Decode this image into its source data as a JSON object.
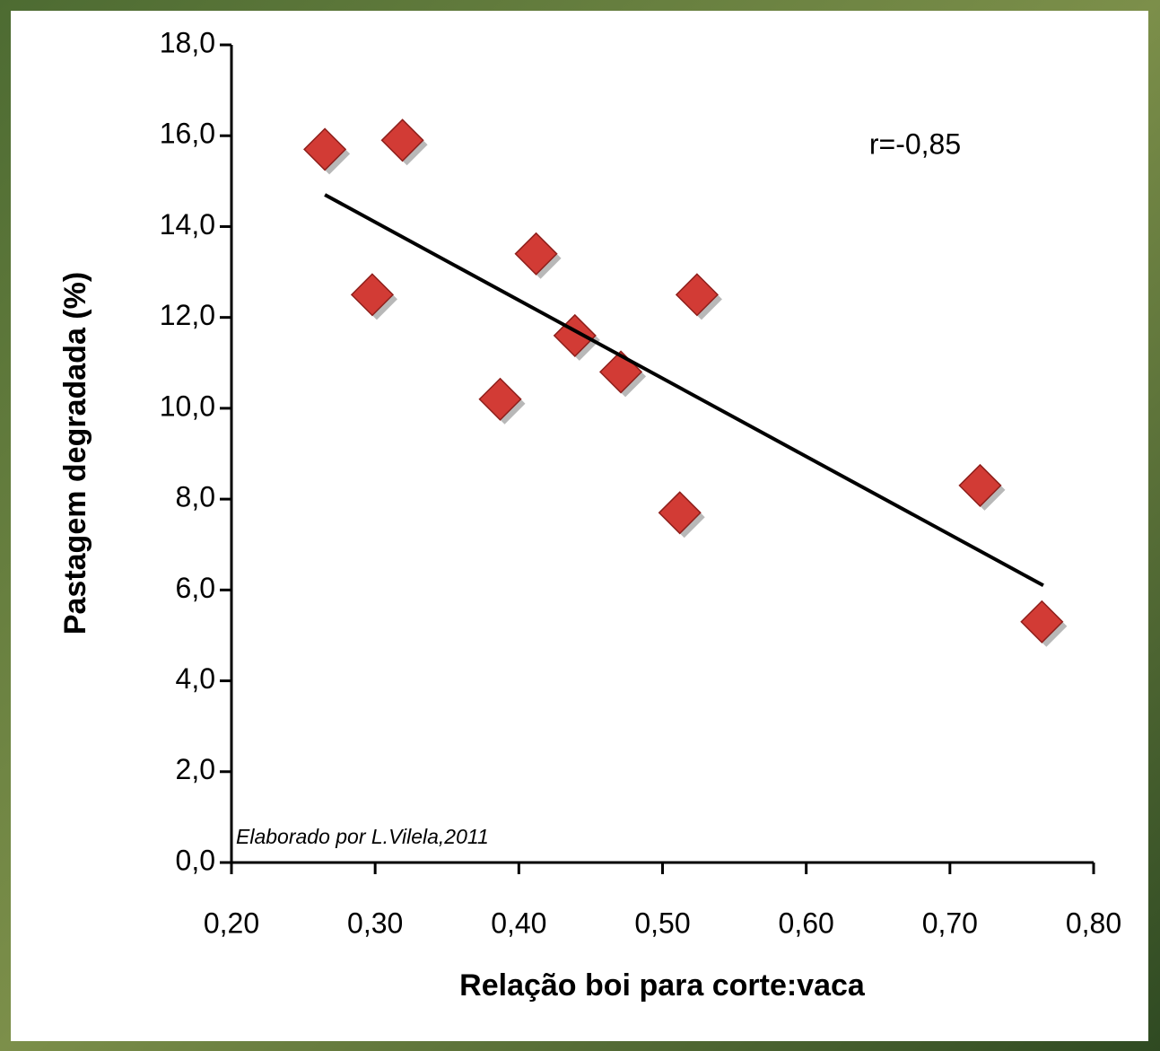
{
  "chart_data": {
    "type": "scatter",
    "x_label": "Relação boi para corte:vaca",
    "y_label": "Pastagem degradada (%)",
    "annotation": "r=-0,85",
    "source": "Elaborado por L.Vilela,2011",
    "xlim": [
      0.2,
      0.8
    ],
    "ylim": [
      0,
      18
    ],
    "xticks": [
      {
        "value": 0.2,
        "label": "0,20"
      },
      {
        "value": 0.3,
        "label": "0,30"
      },
      {
        "value": 0.4,
        "label": "0,40"
      },
      {
        "value": 0.5,
        "label": "0,50"
      },
      {
        "value": 0.6,
        "label": "0,60"
      },
      {
        "value": 0.7,
        "label": "0,70"
      },
      {
        "value": 0.8,
        "label": "0,80"
      }
    ],
    "yticks": [
      {
        "value": 0,
        "label": "0,0"
      },
      {
        "value": 2,
        "label": "2,0"
      },
      {
        "value": 4,
        "label": "4,0"
      },
      {
        "value": 6,
        "label": "6,0"
      },
      {
        "value": 8,
        "label": "8,0"
      },
      {
        "value": 10,
        "label": "10,0"
      },
      {
        "value": 12,
        "label": "12,0"
      },
      {
        "value": 14,
        "label": "14,0"
      },
      {
        "value": 16,
        "label": "16,0"
      },
      {
        "value": 18,
        "label": "18,0"
      }
    ],
    "x": [
      0.265,
      0.319,
      0.298,
      0.412,
      0.439,
      0.387,
      0.471,
      0.524,
      0.512,
      0.721,
      0.764
    ],
    "values": [
      15.7,
      15.9,
      12.5,
      13.4,
      11.6,
      10.2,
      10.8,
      12.5,
      7.7,
      8.3,
      5.3
    ],
    "color": "#d23b35",
    "trendline": {
      "x": [
        0.265,
        0.765
      ],
      "y": [
        14.7,
        6.1
      ],
      "color": "#000000"
    }
  }
}
